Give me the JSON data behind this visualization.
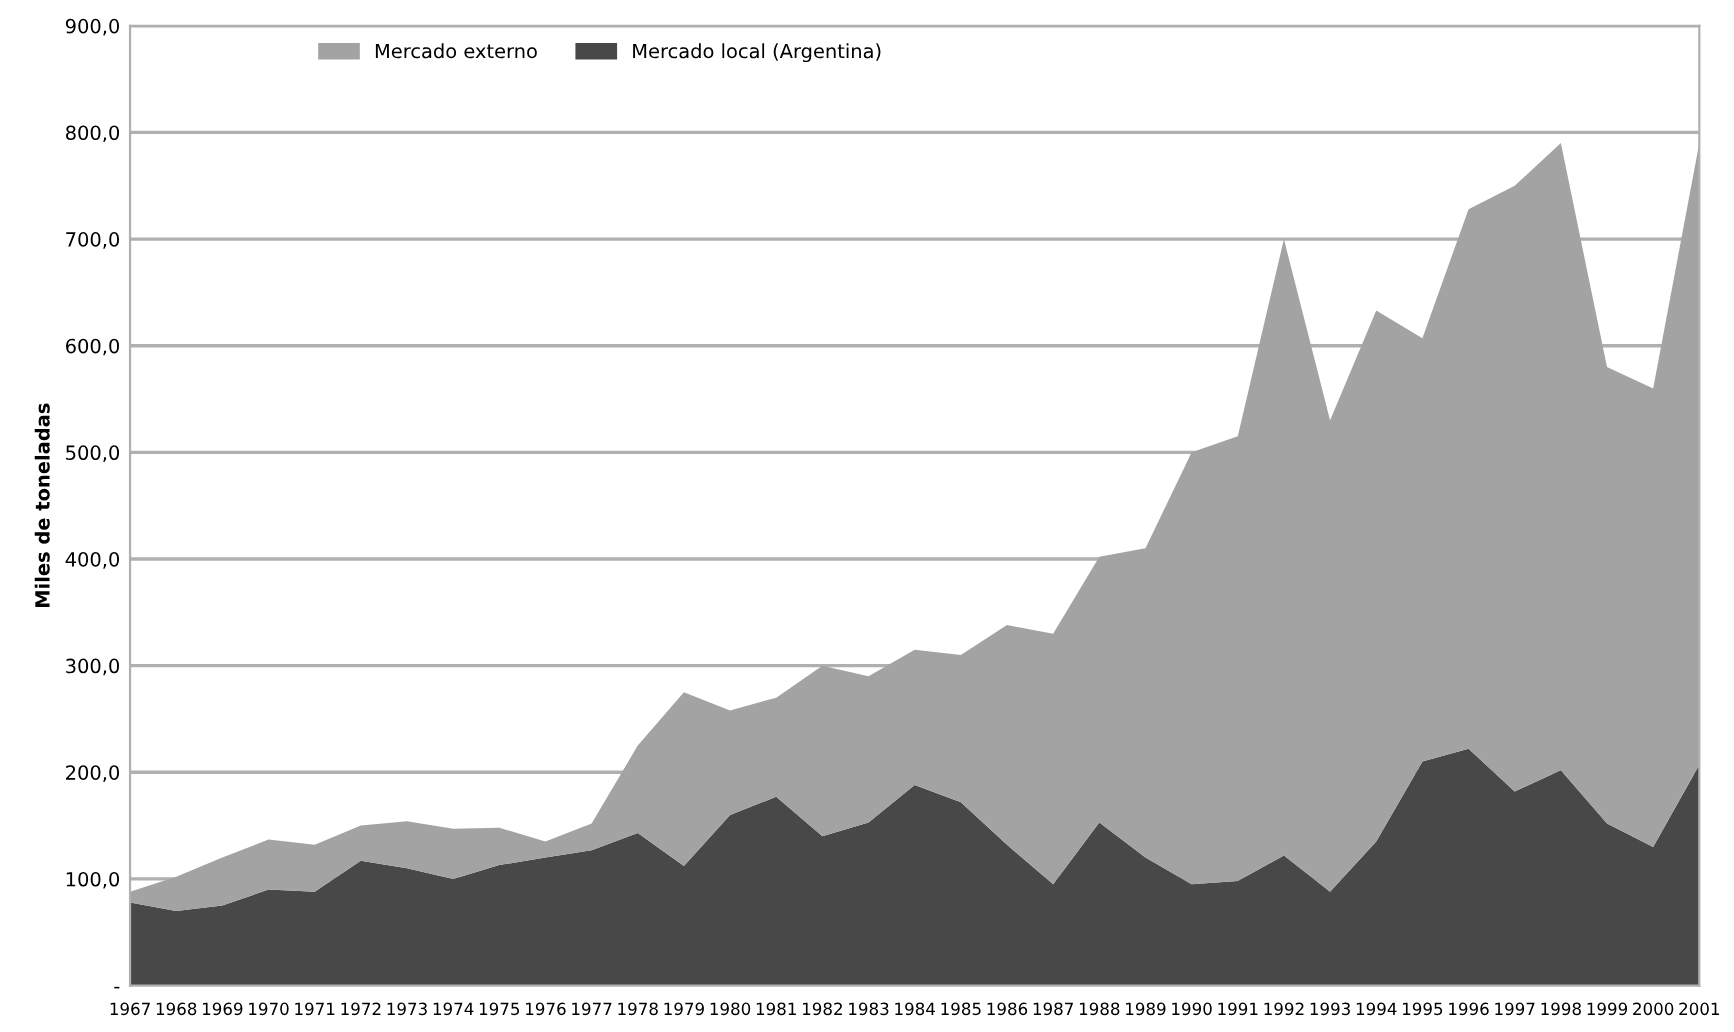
{
  "chart_data": {
    "type": "area",
    "stacked": true,
    "ylabel": "Miles de toneladas",
    "categories": [
      "1967",
      "1968",
      "1969",
      "1970",
      "1971",
      "1972",
      "1973",
      "1974",
      "1975",
      "1976",
      "1977",
      "1978",
      "1979",
      "1980",
      "1981",
      "1982",
      "1983",
      "1984",
      "1985",
      "1986",
      "1987",
      "1988",
      "1989",
      "1990",
      "1991",
      "1992",
      "1993",
      "1994",
      "1995",
      "1996",
      "1997",
      "1998",
      "1999",
      "2000",
      "2001"
    ],
    "series": [
      {
        "name": "Mercado local (Argentina)",
        "color": "#484848",
        "values": [
          78,
          70,
          75,
          90,
          88,
          117,
          110,
          100,
          113,
          120,
          127,
          143,
          112,
          160,
          177,
          140,
          153,
          188,
          172,
          132,
          95,
          153,
          120,
          95,
          98,
          122,
          88,
          135,
          210,
          222,
          182,
          202,
          152,
          130,
          207
        ]
      },
      {
        "name": "Mercado externo",
        "color": "#a3a3a3",
        "values": [
          10,
          32,
          45,
          47,
          44,
          33,
          44,
          47,
          35,
          15,
          25,
          82,
          163,
          98,
          93,
          160,
          137,
          127,
          138,
          206,
          235,
          249,
          290,
          405,
          417,
          578,
          442,
          498,
          397,
          506,
          568,
          588,
          428,
          430,
          583
        ]
      }
    ],
    "ylim": [
      0,
      900
    ],
    "yticks": [
      {
        "value": 0,
        "label": "-"
      },
      {
        "value": 100,
        "label": "100,0"
      },
      {
        "value": 200,
        "label": "200,0"
      },
      {
        "value": 300,
        "label": "300,0"
      },
      {
        "value": 400,
        "label": "400,0"
      },
      {
        "value": 500,
        "label": "500,0"
      },
      {
        "value": 600,
        "label": "600,0"
      },
      {
        "value": 700,
        "label": "700,0"
      },
      {
        "value": 800,
        "label": "800,0"
      },
      {
        "value": 900,
        "label": "900,0"
      }
    ],
    "grid": "y",
    "legend": "top"
  }
}
